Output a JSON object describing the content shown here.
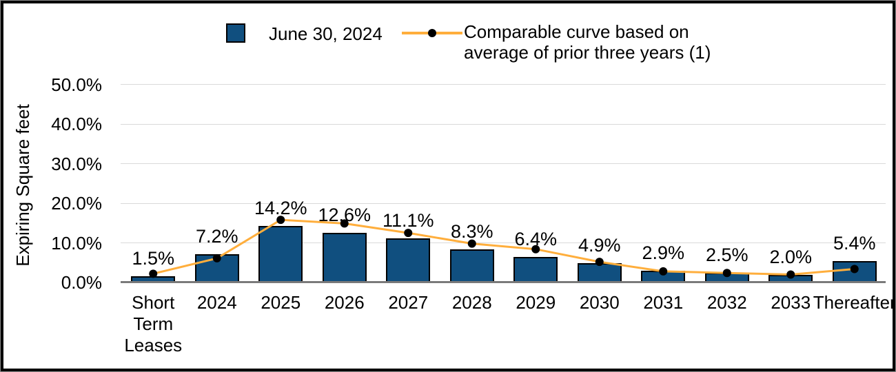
{
  "window": {
    "background": "#ffffff",
    "frame_border": "#000000"
  },
  "legend": {
    "position": "top",
    "items": [
      {
        "swatch": "bar-swatch",
        "label": "June 30, 2024",
        "color": "#104f7f"
      },
      {
        "swatch": "line-swatch",
        "label": "Comparable curve based on\naverage of prior three years (1)",
        "color": "#ffae3c",
        "marker_color": "#000000"
      }
    ]
  },
  "chart_data": {
    "type": "bar",
    "title": "",
    "xlabel": "",
    "ylabel": "Expiring Square feet",
    "ylim": [
      0,
      50
    ],
    "grid": true,
    "legend_position": "top",
    "categories": [
      "Short Term Leases",
      "2024",
      "2025",
      "2026",
      "2027",
      "2028",
      "2029",
      "2030",
      "2031",
      "2032",
      "2033",
      "Thereafter"
    ],
    "yticks": [
      {
        "label": "0.0%",
        "value": 0
      },
      {
        "label": "10.0%",
        "value": 10
      },
      {
        "label": "20.0%",
        "value": 20
      },
      {
        "label": "30.0%",
        "value": 30
      },
      {
        "label": "40.0%",
        "value": 40
      },
      {
        "label": "50.0%",
        "value": 50
      }
    ],
    "series": [
      {
        "name": "June 30, 2024",
        "type": "bar",
        "color": "#104f7f",
        "border_color": "#000000",
        "values": [
          1.5,
          7.2,
          14.2,
          12.6,
          11.1,
          8.3,
          6.4,
          4.9,
          2.9,
          2.5,
          2.0,
          5.4
        ],
        "labels": [
          "1.5%",
          "7.2%",
          "14.2%",
          "12.6%",
          "11.1%",
          "8.3%",
          "6.4%",
          "4.9%",
          "2.9%",
          "2.5%",
          "2.0%",
          "5.4%"
        ]
      },
      {
        "name": "Comparable curve based on average of prior three years (1)",
        "type": "line",
        "color": "#ffae3c",
        "marker_color": "#000000",
        "values": [
          2.2,
          6.1,
          15.8,
          14.9,
          12.5,
          9.8,
          8.4,
          5.2,
          2.8,
          2.4,
          2.0,
          3.4
        ]
      }
    ]
  }
}
